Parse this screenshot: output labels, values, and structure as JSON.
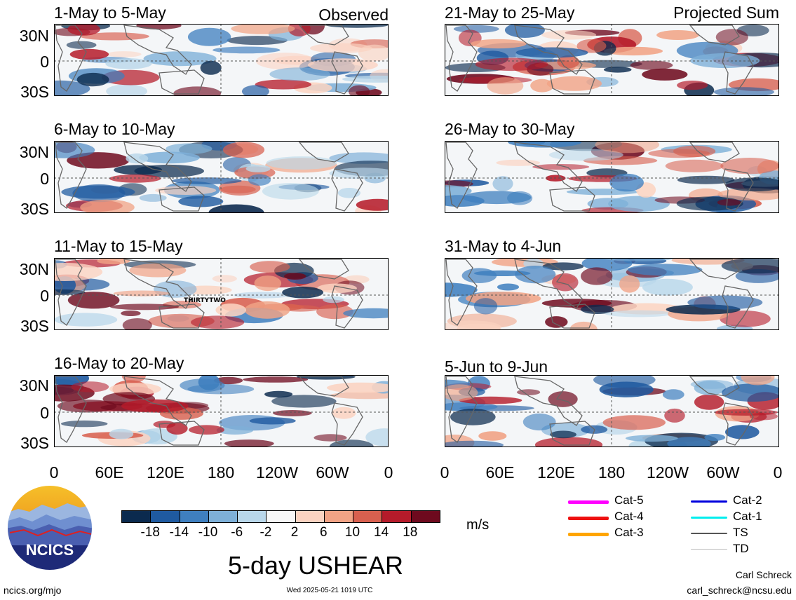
{
  "panels": [
    {
      "title": "1-May to 5-May",
      "tag": "Observed",
      "seed": 3
    },
    {
      "title": "6-May to 10-May",
      "tag": "",
      "seed": 7
    },
    {
      "title": "11-May to 15-May",
      "tag": "",
      "seed": 11,
      "annotation": "THIRTYTWO"
    },
    {
      "title": "16-May to 20-May",
      "tag": "",
      "seed": 19
    },
    {
      "title": "21-May to 25-May",
      "tag": "Projected Sum",
      "seed": 23
    },
    {
      "title": "26-May to 30-May",
      "tag": "",
      "seed": 29
    },
    {
      "title": "31-May to 4-Jun",
      "tag": "",
      "seed": 31
    },
    {
      "title": "5-Jun to 9-Jun",
      "tag": "",
      "seed": 37
    }
  ],
  "lat_labels": [
    "30N",
    "0",
    "30S"
  ],
  "lon_labels": [
    "0",
    "60E",
    "120E",
    "180",
    "120W",
    "60W",
    "0"
  ],
  "colorbar": {
    "ticks": [
      "-18",
      "-14",
      "-10",
      "-6",
      "-2",
      "2",
      "6",
      "10",
      "14",
      "18"
    ],
    "colors": [
      "#0b2a4e",
      "#1f5aa0",
      "#3f7fbf",
      "#7eb0d8",
      "#b9d7ea",
      "#f7f7f7",
      "#fbd3c1",
      "#f1a385",
      "#d8604f",
      "#b51b2a",
      "#6e0a1e"
    ],
    "units": "m/s"
  },
  "storm_legend": [
    {
      "label": "Cat-5",
      "color": "#ff00ff",
      "width": 5
    },
    {
      "label": "Cat-4",
      "color": "#ee1111",
      "width": 5
    },
    {
      "label": "Cat-3",
      "color": "#ffa500",
      "width": 5
    },
    {
      "label": "Cat-2",
      "color": "#0000dd",
      "width": 3
    },
    {
      "label": "Cat-1",
      "color": "#00eeee",
      "width": 3
    },
    {
      "label": "TS",
      "color": "#555555",
      "width": 2
    },
    {
      "label": "TD",
      "color": "#bbbbbb",
      "width": 1
    }
  ],
  "logo_text": "NCICS",
  "main_title": "5-day USHEAR",
  "footer": {
    "left": "ncics.org/mjo",
    "center": "Wed 2025-05-21 1019 UTC",
    "author": "Carl Schreck",
    "email": "carl_schreck@ncsu.edu"
  }
}
